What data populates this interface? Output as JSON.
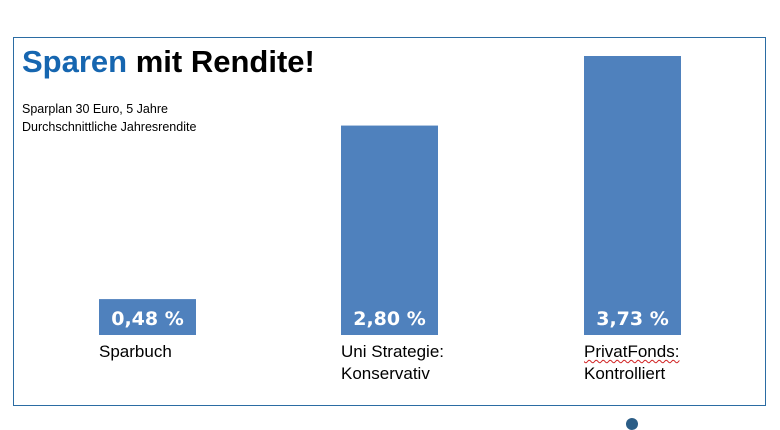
{
  "title": {
    "accent": "Sparen",
    "rest": "mit Rendite!"
  },
  "subtitle": [
    "Sparplan 30 Euro, 5 Jahre",
    "Durchschnittliche Jahresrendite"
  ],
  "colors": {
    "bar": "#4f81bd",
    "accent": "#1666b0",
    "frame": "#2b6ca3",
    "label_text": "#ffffff"
  },
  "chart_data": {
    "type": "bar",
    "categories": [
      [
        "Sparbuch"
      ],
      [
        "Uni Strategie:",
        "Konservativ"
      ],
      [
        "PrivatFonds:",
        "Kontrolliert"
      ]
    ],
    "values": [
      0.48,
      2.8,
      3.73
    ],
    "data_labels": [
      "0,48 %",
      "2,80 %",
      "3,73 %"
    ],
    "unit": "%",
    "title": "Sparen mit Rendite!",
    "xlabel": "",
    "ylabel": "",
    "ylim": [
      0,
      3.73
    ],
    "grid": false,
    "legend": "none"
  }
}
